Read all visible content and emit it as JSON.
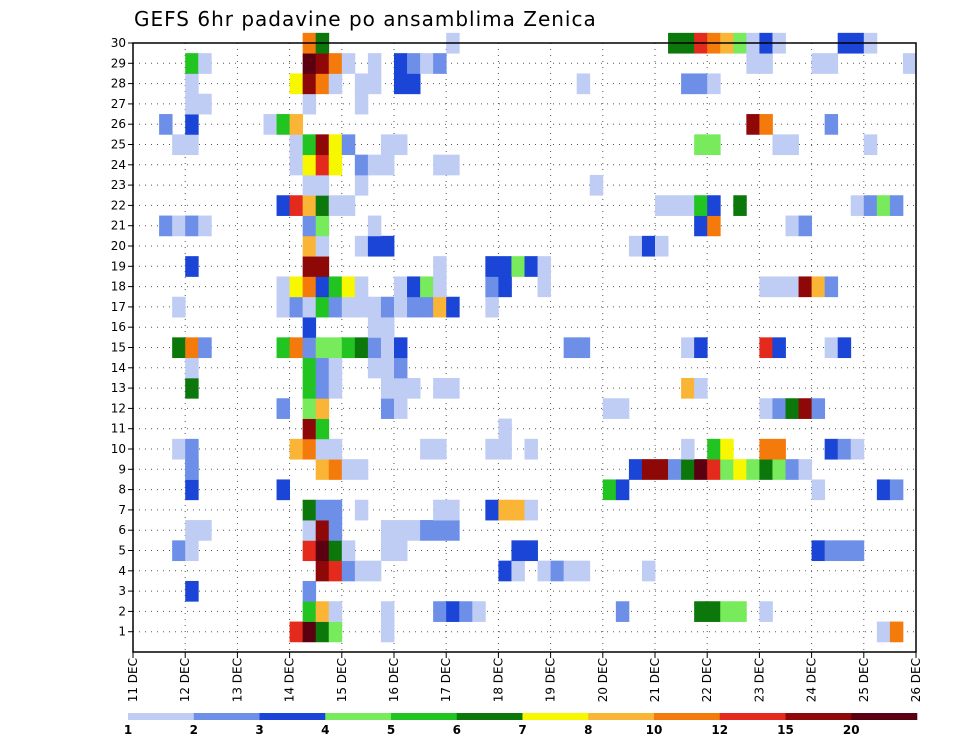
{
  "chart_data": {
    "type": "heatmap",
    "title": "GEFS 6hr padavine po ansamblima Zenica",
    "x_ticks": [
      "11 DEC",
      "12 DEC",
      "13 DEC",
      "14 DEC",
      "15 DEC",
      "16 DEC",
      "17 DEC",
      "18 DEC",
      "19 DEC",
      "20 DEC",
      "21 DEC",
      "22 DEC",
      "23 DEC",
      "24 DEC",
      "25 DEC",
      "26 DEC"
    ],
    "y_ticks": [
      "1",
      "2",
      "3",
      "4",
      "5",
      "6",
      "7",
      "8",
      "9",
      "10",
      "11",
      "12",
      "13",
      "14",
      "15",
      "16",
      "17",
      "18",
      "19",
      "20",
      "21",
      "22",
      "23",
      "24",
      "25",
      "26",
      "27",
      "28",
      "29",
      "30"
    ],
    "xlim_days": [
      11,
      26
    ],
    "ylim_members": [
      0,
      30
    ],
    "grid": true,
    "colorbar": {
      "labels": [
        "1",
        "2",
        "3",
        "4",
        "5",
        "6",
        "7",
        "8",
        "10",
        "12",
        "15",
        "20"
      ],
      "colors": [
        "#bfcdf5",
        "#6d8fe8",
        "#1a45d6",
        "#78eb5c",
        "#22c422",
        "#0c780c",
        "#f7f700",
        "#fab537",
        "#f57a0c",
        "#e42a1c",
        "#8e0808",
        "#5a0010"
      ]
    },
    "cells": [
      [
        1,
        14.0,
        9
      ],
      [
        1,
        14.25,
        11
      ],
      [
        1,
        14.5,
        5
      ],
      [
        1,
        14.75,
        3
      ],
      [
        1,
        15.75,
        0
      ],
      [
        1,
        25.25,
        0
      ],
      [
        1,
        25.5,
        8
      ],
      [
        2,
        14.25,
        4
      ],
      [
        2,
        14.5,
        7
      ],
      [
        2,
        14.75,
        0
      ],
      [
        2,
        15.75,
        0
      ],
      [
        2,
        16.75,
        1
      ],
      [
        2,
        17.0,
        2
      ],
      [
        2,
        17.25,
        1
      ],
      [
        2,
        17.5,
        0
      ],
      [
        2,
        20.25,
        1
      ],
      [
        2,
        21.75,
        5
      ],
      [
        2,
        22.0,
        5
      ],
      [
        2,
        22.25,
        3
      ],
      [
        2,
        22.5,
        3
      ],
      [
        2,
        23.0,
        0
      ],
      [
        3,
        12.0,
        2
      ],
      [
        3,
        14.25,
        1
      ],
      [
        4,
        14.5,
        10
      ],
      [
        4,
        14.75,
        9
      ],
      [
        4,
        15.0,
        1
      ],
      [
        4,
        15.25,
        0
      ],
      [
        4,
        15.5,
        0
      ],
      [
        4,
        18.0,
        2
      ],
      [
        4,
        18.25,
        0
      ],
      [
        4,
        18.75,
        0
      ],
      [
        4,
        19.0,
        1
      ],
      [
        4,
        19.25,
        0
      ],
      [
        4,
        19.5,
        0
      ],
      [
        4,
        20.75,
        0
      ],
      [
        5,
        11.75,
        1
      ],
      [
        5,
        12.0,
        0
      ],
      [
        5,
        14.25,
        9
      ],
      [
        5,
        14.5,
        11
      ],
      [
        5,
        14.75,
        5
      ],
      [
        5,
        15.0,
        0
      ],
      [
        5,
        15.75,
        0
      ],
      [
        5,
        16.0,
        0
      ],
      [
        5,
        18.25,
        2
      ],
      [
        5,
        18.5,
        2
      ],
      [
        5,
        24.0,
        2
      ],
      [
        5,
        24.25,
        1
      ],
      [
        5,
        24.5,
        1
      ],
      [
        5,
        24.75,
        1
      ],
      [
        6,
        12.0,
        0
      ],
      [
        6,
        12.25,
        0
      ],
      [
        6,
        14.25,
        0
      ],
      [
        6,
        14.5,
        10
      ],
      [
        6,
        14.75,
        1
      ],
      [
        6,
        15.75,
        0
      ],
      [
        6,
        16.0,
        0
      ],
      [
        6,
        16.25,
        0
      ],
      [
        6,
        16.5,
        1
      ],
      [
        6,
        16.75,
        1
      ],
      [
        6,
        17.0,
        1
      ],
      [
        7,
        14.25,
        5
      ],
      [
        7,
        14.5,
        1
      ],
      [
        7,
        14.75,
        1
      ],
      [
        7,
        15.25,
        0
      ],
      [
        7,
        16.75,
        0
      ],
      [
        7,
        17.0,
        0
      ],
      [
        7,
        17.75,
        2
      ],
      [
        7,
        18.0,
        7
      ],
      [
        7,
        18.25,
        7
      ],
      [
        7,
        18.5,
        0
      ],
      [
        8,
        12.0,
        2
      ],
      [
        8,
        13.75,
        2
      ],
      [
        8,
        20.0,
        4
      ],
      [
        8,
        20.25,
        2
      ],
      [
        8,
        24.0,
        0
      ],
      [
        8,
        25.25,
        2
      ],
      [
        8,
        25.5,
        1
      ],
      [
        9,
        14.5,
        7
      ],
      [
        9,
        14.75,
        8
      ],
      [
        9,
        15.0,
        0
      ],
      [
        9,
        15.25,
        0
      ],
      [
        9,
        12.0,
        1
      ],
      [
        9,
        20.5,
        2
      ],
      [
        9,
        20.75,
        10
      ],
      [
        9,
        21.0,
        10
      ],
      [
        9,
        21.25,
        1
      ],
      [
        9,
        21.5,
        5
      ],
      [
        9,
        21.75,
        11
      ],
      [
        9,
        22.0,
        9
      ],
      [
        9,
        22.25,
        3
      ],
      [
        9,
        22.5,
        6
      ],
      [
        9,
        22.75,
        3
      ],
      [
        9,
        23.0,
        5
      ],
      [
        9,
        23.25,
        3
      ],
      [
        9,
        23.5,
        1
      ],
      [
        9,
        23.75,
        0
      ],
      [
        9,
        12.0,
        1
      ],
      [
        10,
        11.75,
        0
      ],
      [
        10,
        12.0,
        1
      ],
      [
        10,
        14.0,
        7
      ],
      [
        10,
        14.25,
        8
      ],
      [
        10,
        14.5,
        0
      ],
      [
        10,
        14.75,
        0
      ],
      [
        10,
        16.5,
        0
      ],
      [
        10,
        16.75,
        0
      ],
      [
        10,
        17.75,
        0
      ],
      [
        10,
        18.0,
        0
      ],
      [
        10,
        18.5,
        0
      ],
      [
        10,
        21.5,
        0
      ],
      [
        10,
        22.0,
        4
      ],
      [
        10,
        22.25,
        6
      ],
      [
        10,
        23.0,
        8
      ],
      [
        10,
        23.25,
        8
      ],
      [
        10,
        24.25,
        2
      ],
      [
        10,
        24.5,
        1
      ],
      [
        10,
        24.75,
        0
      ],
      [
        11,
        14.25,
        10
      ],
      [
        11,
        14.5,
        4
      ],
      [
        11,
        18.0,
        0
      ],
      [
        12,
        13.75,
        1
      ],
      [
        12,
        14.25,
        3
      ],
      [
        12,
        14.5,
        7
      ],
      [
        12,
        15.75,
        1
      ],
      [
        12,
        16.0,
        0
      ],
      [
        12,
        20.0,
        0
      ],
      [
        12,
        20.25,
        0
      ],
      [
        12,
        23.0,
        0
      ],
      [
        12,
        23.25,
        1
      ],
      [
        12,
        23.5,
        5
      ],
      [
        12,
        23.75,
        10
      ],
      [
        12,
        24.0,
        1
      ],
      [
        13,
        12.0,
        5
      ],
      [
        13,
        14.25,
        4
      ],
      [
        13,
        14.5,
        1
      ],
      [
        13,
        14.75,
        0
      ],
      [
        13,
        15.75,
        0
      ],
      [
        13,
        16.0,
        0
      ],
      [
        13,
        16.25,
        0
      ],
      [
        13,
        16.75,
        0
      ],
      [
        13,
        17.0,
        0
      ],
      [
        13,
        21.5,
        7
      ],
      [
        13,
        21.75,
        0
      ],
      [
        14,
        12.0,
        0
      ],
      [
        14,
        14.25,
        4
      ],
      [
        14,
        14.5,
        1
      ],
      [
        14,
        14.75,
        0
      ],
      [
        14,
        15.5,
        0
      ],
      [
        14,
        15.75,
        0
      ],
      [
        14,
        16.0,
        1
      ],
      [
        15,
        11.75,
        5
      ],
      [
        15,
        12.0,
        8
      ],
      [
        15,
        12.25,
        1
      ],
      [
        15,
        13.75,
        4
      ],
      [
        15,
        14.0,
        8
      ],
      [
        15,
        14.25,
        1
      ],
      [
        15,
        14.5,
        3
      ],
      [
        15,
        14.75,
        3
      ],
      [
        15,
        15.0,
        4
      ],
      [
        15,
        15.25,
        5
      ],
      [
        15,
        15.5,
        1
      ],
      [
        15,
        15.75,
        0
      ],
      [
        15,
        16.0,
        2
      ],
      [
        15,
        19.25,
        1
      ],
      [
        15,
        19.5,
        1
      ],
      [
        15,
        21.5,
        0
      ],
      [
        15,
        21.75,
        2
      ],
      [
        15,
        23.0,
        9
      ],
      [
        15,
        23.25,
        2
      ],
      [
        15,
        24.25,
        0
      ],
      [
        15,
        24.5,
        2
      ],
      [
        16,
        14.25,
        2
      ],
      [
        16,
        15.5,
        0
      ],
      [
        16,
        15.75,
        0
      ],
      [
        17,
        11.75,
        0
      ],
      [
        17,
        13.75,
        0
      ],
      [
        17,
        14.0,
        1
      ],
      [
        17,
        14.25,
        0
      ],
      [
        17,
        14.5,
        4
      ],
      [
        17,
        14.75,
        1
      ],
      [
        17,
        15.0,
        0
      ],
      [
        17,
        15.25,
        0
      ],
      [
        17,
        15.5,
        0
      ],
      [
        17,
        15.75,
        1
      ],
      [
        17,
        16.0,
        0
      ],
      [
        17,
        16.25,
        1
      ],
      [
        17,
        16.5,
        1
      ],
      [
        17,
        16.75,
        7
      ],
      [
        17,
        17.0,
        2
      ],
      [
        17,
        17.75,
        0
      ],
      [
        18,
        13.75,
        0
      ],
      [
        18,
        14.0,
        6
      ],
      [
        18,
        14.25,
        8
      ],
      [
        18,
        14.5,
        2
      ],
      [
        18,
        14.75,
        4
      ],
      [
        18,
        15.0,
        6
      ],
      [
        18,
        15.25,
        0
      ],
      [
        18,
        16.0,
        0
      ],
      [
        18,
        16.25,
        2
      ],
      [
        18,
        16.5,
        3
      ],
      [
        18,
        16.75,
        0
      ],
      [
        18,
        17.75,
        1
      ],
      [
        18,
        18.0,
        2
      ],
      [
        18,
        18.75,
        0
      ],
      [
        18,
        23.0,
        0
      ],
      [
        18,
        23.25,
        0
      ],
      [
        18,
        23.5,
        0
      ],
      [
        18,
        23.75,
        10
      ],
      [
        18,
        24.0,
        7
      ],
      [
        18,
        24.25,
        1
      ],
      [
        19,
        12.0,
        2
      ],
      [
        19,
        14.25,
        10
      ],
      [
        19,
        14.5,
        10
      ],
      [
        19,
        16.75,
        0
      ],
      [
        19,
        17.75,
        2
      ],
      [
        19,
        18.0,
        2
      ],
      [
        19,
        18.25,
        3
      ],
      [
        19,
        18.5,
        2
      ],
      [
        19,
        18.75,
        0
      ],
      [
        20,
        14.25,
        7
      ],
      [
        20,
        14.5,
        0
      ],
      [
        20,
        15.25,
        0
      ],
      [
        20,
        15.5,
        2
      ],
      [
        20,
        15.75,
        2
      ],
      [
        20,
        20.5,
        0
      ],
      [
        20,
        20.75,
        2
      ],
      [
        20,
        21.0,
        0
      ],
      [
        21,
        11.5,
        1
      ],
      [
        21,
        11.75,
        0
      ],
      [
        21,
        12.0,
        1
      ],
      [
        21,
        12.25,
        0
      ],
      [
        21,
        14.25,
        1
      ],
      [
        21,
        14.5,
        3
      ],
      [
        21,
        15.5,
        0
      ],
      [
        21,
        21.75,
        2
      ],
      [
        21,
        22.0,
        8
      ],
      [
        21,
        23.5,
        0
      ],
      [
        21,
        23.75,
        1
      ],
      [
        22,
        13.75,
        2
      ],
      [
        22,
        14.0,
        9
      ],
      [
        22,
        14.25,
        7
      ],
      [
        22,
        14.5,
        5
      ],
      [
        22,
        14.75,
        0
      ],
      [
        22,
        15.0,
        0
      ],
      [
        22,
        21.0,
        0
      ],
      [
        22,
        21.25,
        0
      ],
      [
        22,
        21.5,
        0
      ],
      [
        22,
        21.75,
        4
      ],
      [
        22,
        22.0,
        2
      ],
      [
        22,
        22.5,
        5
      ],
      [
        22,
        24.75,
        0
      ],
      [
        22,
        25.0,
        1
      ],
      [
        22,
        25.25,
        3
      ],
      [
        22,
        25.5,
        1
      ],
      [
        23,
        14.25,
        0
      ],
      [
        23,
        14.5,
        0
      ],
      [
        23,
        15.25,
        0
      ],
      [
        23,
        19.75,
        0
      ],
      [
        24,
        14.0,
        0
      ],
      [
        24,
        14.25,
        6
      ],
      [
        24,
        14.5,
        9
      ],
      [
        24,
        14.75,
        6
      ],
      [
        24,
        15.25,
        1
      ],
      [
        24,
        15.5,
        0
      ],
      [
        24,
        15.75,
        0
      ],
      [
        24,
        16.75,
        0
      ],
      [
        24,
        17.0,
        0
      ],
      [
        25,
        11.75,
        0
      ],
      [
        25,
        12.0,
        0
      ],
      [
        25,
        14.0,
        0
      ],
      [
        25,
        14.25,
        4
      ],
      [
        25,
        14.5,
        10
      ],
      [
        25,
        14.75,
        6
      ],
      [
        25,
        15.0,
        1
      ],
      [
        25,
        15.75,
        0
      ],
      [
        25,
        16.0,
        0
      ],
      [
        25,
        21.75,
        3
      ],
      [
        25,
        22.0,
        3
      ],
      [
        25,
        23.25,
        0
      ],
      [
        25,
        23.5,
        0
      ],
      [
        25,
        25.0,
        0
      ],
      [
        26,
        11.5,
        1
      ],
      [
        26,
        12.0,
        2
      ],
      [
        26,
        13.5,
        0
      ],
      [
        26,
        13.75,
        4
      ],
      [
        26,
        14.0,
        7
      ],
      [
        26,
        22.75,
        10
      ],
      [
        26,
        23.0,
        8
      ],
      [
        26,
        24.25,
        1
      ],
      [
        27,
        12.0,
        0
      ],
      [
        27,
        12.25,
        0
      ],
      [
        27,
        14.25,
        0
      ],
      [
        27,
        15.25,
        0
      ],
      [
        28,
        12.0,
        0
      ],
      [
        28,
        14.0,
        6
      ],
      [
        28,
        14.25,
        10
      ],
      [
        28,
        14.5,
        8
      ],
      [
        28,
        14.75,
        0
      ],
      [
        28,
        15.25,
        0
      ],
      [
        28,
        15.5,
        0
      ],
      [
        28,
        16.0,
        2
      ],
      [
        28,
        16.25,
        2
      ],
      [
        28,
        19.5,
        0
      ],
      [
        28,
        21.5,
        1
      ],
      [
        28,
        21.75,
        1
      ],
      [
        28,
        22.0,
        0
      ],
      [
        29,
        12.0,
        4
      ],
      [
        29,
        12.25,
        0
      ],
      [
        29,
        14.25,
        11
      ],
      [
        29,
        14.5,
        10
      ],
      [
        29,
        14.75,
        8
      ],
      [
        29,
        15.0,
        0
      ],
      [
        29,
        15.5,
        0
      ],
      [
        29,
        16.0,
        2
      ],
      [
        29,
        16.25,
        1
      ],
      [
        29,
        16.5,
        0
      ],
      [
        29,
        16.75,
        1
      ],
      [
        29,
        22.75,
        0
      ],
      [
        29,
        23.0,
        0
      ],
      [
        29,
        24.0,
        0
      ],
      [
        29,
        24.25,
        0
      ],
      [
        29,
        25.75,
        0
      ],
      [
        30,
        14.25,
        8
      ],
      [
        30,
        14.5,
        5
      ],
      [
        30,
        17.0,
        0
      ],
      [
        30,
        21.25,
        5
      ],
      [
        30,
        21.5,
        5
      ],
      [
        30,
        21.75,
        9
      ],
      [
        30,
        22.0,
        8
      ],
      [
        30,
        22.25,
        7
      ],
      [
        30,
        22.5,
        3
      ],
      [
        30,
        22.75,
        0
      ],
      [
        30,
        23.0,
        2
      ],
      [
        30,
        23.25,
        0
      ],
      [
        30,
        24.5,
        2
      ],
      [
        30,
        24.75,
        2
      ],
      [
        30,
        25.0,
        0
      ]
    ]
  }
}
